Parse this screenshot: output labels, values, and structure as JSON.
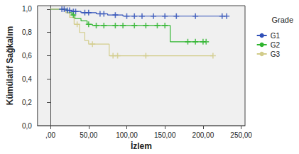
{
  "chart_data": {
    "type": "step",
    "x_label": "İzlem",
    "y_label": "Kümülatif Sağkalım",
    "legend_title": "Grade",
    "legend": "right",
    "grid": false,
    "xlim": [
      -17,
      255
    ],
    "ylim": [
      0,
      1.03
    ],
    "xticks": [
      {
        "value": 0,
        "label": ",00"
      },
      {
        "value": 50,
        "label": "50,00"
      },
      {
        "value": 100,
        "label": "100,00"
      },
      {
        "value": 150,
        "label": "150,00"
      },
      {
        "value": 200,
        "label": "200,00"
      },
      {
        "value": 250,
        "label": "250,00"
      }
    ],
    "yticks": [
      {
        "value": 0,
        "label": "0,0"
      },
      {
        "value": 0.2,
        "label": "0,2"
      },
      {
        "value": 0.4,
        "label": "0,4"
      },
      {
        "value": 0.6,
        "label": "0,6"
      },
      {
        "value": 0.8,
        "label": "0,8"
      },
      {
        "value": 1.0,
        "label": "1,0"
      }
    ],
    "series": [
      {
        "name": "G1",
        "color": "#3050b8",
        "marker": "plus",
        "x": [
          0,
          20,
          28,
          40,
          60,
          75,
          95,
          231
        ],
        "values": [
          1,
          0.99,
          0.98,
          0.97,
          0.96,
          0.95,
          0.94,
          0.94
        ],
        "censored": {
          "x": [
            15,
            18,
            22,
            25,
            30,
            33,
            45,
            50,
            65,
            70,
            85,
            100,
            110,
            120,
            135,
            150,
            165,
            190,
            225,
            231
          ],
          "values": [
            1,
            1,
            0.99,
            0.99,
            0.98,
            0.98,
            0.97,
            0.97,
            0.96,
            0.96,
            0.95,
            0.94,
            0.94,
            0.94,
            0.94,
            0.94,
            0.94,
            0.94,
            0.94,
            0.94
          ]
        }
      },
      {
        "name": "G2",
        "color": "#2fb52f",
        "marker": "plus",
        "x": [
          0,
          22,
          28,
          32,
          40,
          48,
          55,
          157,
          204
        ],
        "values": [
          1,
          0.97,
          0.95,
          0.92,
          0.9,
          0.87,
          0.86,
          0.72,
          0.72
        ],
        "censored": {
          "x": [
            30,
            50,
            60,
            70,
            85,
            95,
            110,
            125,
            140,
            150,
            180,
            190,
            200,
            204
          ],
          "values": [
            0.95,
            0.87,
            0.86,
            0.86,
            0.86,
            0.86,
            0.86,
            0.86,
            0.86,
            0.86,
            0.72,
            0.72,
            0.72,
            0.72
          ]
        }
      },
      {
        "name": "G3",
        "color": "#d2cc8a",
        "marker": "plus",
        "x": [
          0,
          20,
          25,
          31,
          38,
          45,
          50,
          77,
          213
        ],
        "values": [
          1,
          0.97,
          0.93,
          0.87,
          0.8,
          0.73,
          0.7,
          0.6,
          0.6
        ],
        "censored": {
          "x": [
            35,
            55,
            82,
            88,
            125,
            213
          ],
          "values": [
            0.87,
            0.7,
            0.6,
            0.6,
            0.6,
            0.6
          ]
        }
      }
    ]
  }
}
